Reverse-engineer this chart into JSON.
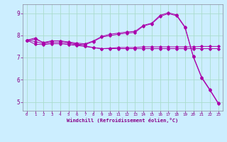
{
  "background_color": "#cceeff",
  "grid_color": "#aaddcc",
  "line_color": "#aa00aa",
  "xlabel": "Windchill (Refroidissement éolien,°C)",
  "xlabel_color": "#880088",
  "xlim": [
    -0.5,
    23.5
  ],
  "ylim": [
    4.6,
    9.4
  ],
  "xticks": [
    0,
    1,
    2,
    3,
    4,
    5,
    6,
    7,
    8,
    9,
    10,
    11,
    12,
    13,
    14,
    15,
    16,
    17,
    18,
    19,
    20,
    21,
    22,
    23
  ],
  "yticks": [
    5,
    6,
    7,
    8,
    9
  ],
  "line1_x": [
    0,
    1,
    2,
    3,
    4,
    5,
    6,
    7,
    8,
    9,
    10,
    11,
    12,
    13,
    14,
    15,
    16,
    17,
    18,
    19,
    20,
    21,
    22,
    23
  ],
  "line1_y": [
    7.78,
    7.88,
    7.65,
    7.75,
    7.75,
    7.68,
    7.6,
    7.58,
    7.72,
    7.92,
    7.99,
    8.05,
    8.1,
    8.13,
    8.42,
    8.52,
    8.85,
    8.98,
    8.88,
    8.35,
    7.02,
    6.08,
    5.52,
    4.92
  ],
  "line2_x": [
    0,
    1,
    2,
    3,
    4,
    5,
    6,
    7,
    8,
    9,
    10,
    11,
    12,
    13,
    14,
    15,
    16,
    17,
    18,
    19,
    20,
    21,
    22,
    23
  ],
  "line2_y": [
    7.78,
    7.72,
    7.62,
    7.68,
    7.68,
    7.63,
    7.58,
    7.52,
    7.45,
    7.4,
    7.42,
    7.45,
    7.45,
    7.45,
    7.48,
    7.48,
    7.48,
    7.48,
    7.48,
    7.48,
    7.48,
    7.5,
    7.5,
    7.5
  ],
  "line3_x": [
    0,
    1,
    2,
    3,
    4,
    5,
    6,
    7,
    8,
    9,
    10,
    11,
    12,
    13,
    14,
    15,
    16,
    17,
    18,
    19,
    20,
    21,
    22,
    23
  ],
  "line3_y": [
    7.78,
    7.6,
    7.58,
    7.62,
    7.62,
    7.58,
    7.54,
    7.5,
    7.44,
    7.4,
    7.4,
    7.4,
    7.4,
    7.4,
    7.4,
    7.4,
    7.4,
    7.4,
    7.4,
    7.4,
    7.4,
    7.4,
    7.4,
    7.4
  ],
  "line4_x": [
    0,
    1,
    2,
    3,
    4,
    5,
    6,
    7,
    8,
    9,
    10,
    11,
    12,
    13,
    14,
    15,
    16,
    17,
    18,
    19,
    20,
    21,
    22,
    23
  ],
  "line4_y": [
    7.78,
    7.82,
    7.68,
    7.75,
    7.75,
    7.7,
    7.65,
    7.62,
    7.75,
    7.95,
    8.05,
    8.1,
    8.15,
    8.18,
    8.45,
    8.55,
    8.9,
    9.02,
    8.92,
    8.38,
    7.05,
    6.12,
    5.55,
    4.95
  ]
}
